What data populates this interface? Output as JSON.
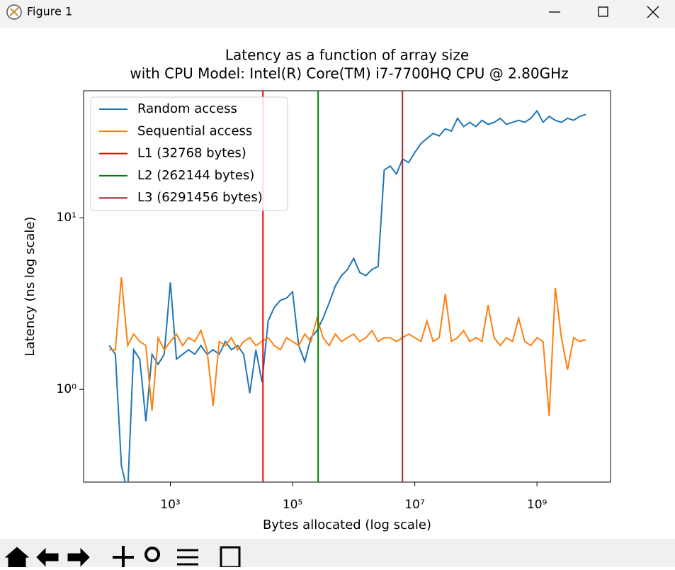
{
  "window": {
    "title": "Figure 1"
  },
  "chart_data": {
    "type": "line",
    "title": "Latency as a function of array size",
    "subtitle": "with CPU Model: Intel(R) Core(TM) i7-7700HQ CPU @ 2.80GHz",
    "x_label": "Bytes allocated (log scale)",
    "y_label": "Latency (ns log scale)",
    "x_log": true,
    "y_log": true,
    "grid": false,
    "legend": "upper left",
    "xlim": [
      38,
      16000000000
    ],
    "ylim": [
      0.288,
      55
    ],
    "xticks": [
      {
        "value": 1000,
        "label": "10³"
      },
      {
        "value": 100000,
        "label": "10⁵"
      },
      {
        "value": 10000000,
        "label": "10⁷"
      },
      {
        "value": 1000000000,
        "label": "10⁹"
      }
    ],
    "yticks": [
      {
        "value": 1,
        "label": "10⁰"
      },
      {
        "value": 10,
        "label": "10¹"
      }
    ],
    "x": [
      100,
      126,
      158,
      200,
      251,
      316,
      398,
      501,
      631,
      794,
      1000,
      1259,
      1585,
      1995,
      2512,
      3162,
      3981,
      5012,
      6310,
      7943,
      10000,
      12589,
      15849,
      19953,
      25119,
      31623,
      39811,
      50119,
      63096,
      79433,
      100000,
      125893,
      158489,
      199526,
      251189,
      316228,
      398107,
      501187,
      630957,
      794328,
      1000000,
      1258925,
      1584893,
      1995262,
      2511886,
      3162278,
      3981072,
      5011872,
      6309573,
      7943282,
      10000000,
      12589254,
      15848932,
      19952623,
      25118864,
      31622777,
      39810717,
      50118723,
      63095734,
      79432823,
      100000000,
      125892541,
      158489319,
      199526231,
      251188643,
      316227766,
      398107171,
      501187234,
      630957344,
      794328235,
      1000000000,
      1258925412,
      1584893192,
      1995262315,
      2511886432,
      3162277660,
      3981071706,
      5011872336,
      6309573445
    ],
    "series": [
      {
        "name": "Random access",
        "color": "#1f77b4",
        "values": [
          1.8,
          1.6,
          0.36,
          0.25,
          1.7,
          1.5,
          0.65,
          1.6,
          1.4,
          1.6,
          4.2,
          1.5,
          1.6,
          1.7,
          1.6,
          1.8,
          1.6,
          1.7,
          1.6,
          1.9,
          1.7,
          1.8,
          1.6,
          0.95,
          1.7,
          1.1,
          2.5,
          3.0,
          3.3,
          3.4,
          3.7,
          1.8,
          1.45,
          2.0,
          2.2,
          2.6,
          3.2,
          4.0,
          4.6,
          5.0,
          5.8,
          4.8,
          4.6,
          5.0,
          5.2,
          19,
          20,
          18,
          22,
          21,
          24,
          27,
          29,
          31,
          30,
          33,
          32,
          38,
          34,
          36,
          34,
          37,
          35,
          36,
          38,
          35,
          36,
          37,
          36,
          38,
          42,
          36,
          39,
          37,
          36,
          38,
          37,
          39,
          40
        ]
      },
      {
        "name": "Sequential access",
        "color": "#ff7f0e",
        "values": [
          1.7,
          1.7,
          4.5,
          1.8,
          2.1,
          1.9,
          1.8,
          0.75,
          2.0,
          1.7,
          1.9,
          2.1,
          1.8,
          2.0,
          1.9,
          2.2,
          1.7,
          0.8,
          1.9,
          1.8,
          2.0,
          1.7,
          1.9,
          2.0,
          1.8,
          1.9,
          2.0,
          1.8,
          1.7,
          2.0,
          1.9,
          1.8,
          2.1,
          1.9,
          2.6,
          2.0,
          1.8,
          2.1,
          1.9,
          2.0,
          2.1,
          1.9,
          2.0,
          2.2,
          1.9,
          2.0,
          2.0,
          1.9,
          2.0,
          2.1,
          2.0,
          1.9,
          2.5,
          1.9,
          2.0,
          3.6,
          1.9,
          2.0,
          2.2,
          1.9,
          2.0,
          1.9,
          3.1,
          2.0,
          1.8,
          2.0,
          1.9,
          2.6,
          1.9,
          1.8,
          2.0,
          1.9,
          0.7,
          3.9,
          2.0,
          1.3,
          2.0,
          1.9,
          1.95
        ]
      }
    ],
    "vlines": [
      {
        "name": "L1 (32768 bytes)",
        "color": "#ff0000",
        "x": 32768
      },
      {
        "name": "L2 (262144 bytes)",
        "color": "#008000",
        "x": 262144
      },
      {
        "name": "L3 (6291456 bytes)",
        "color": "#a52a2a",
        "x": 6291456
      }
    ]
  }
}
